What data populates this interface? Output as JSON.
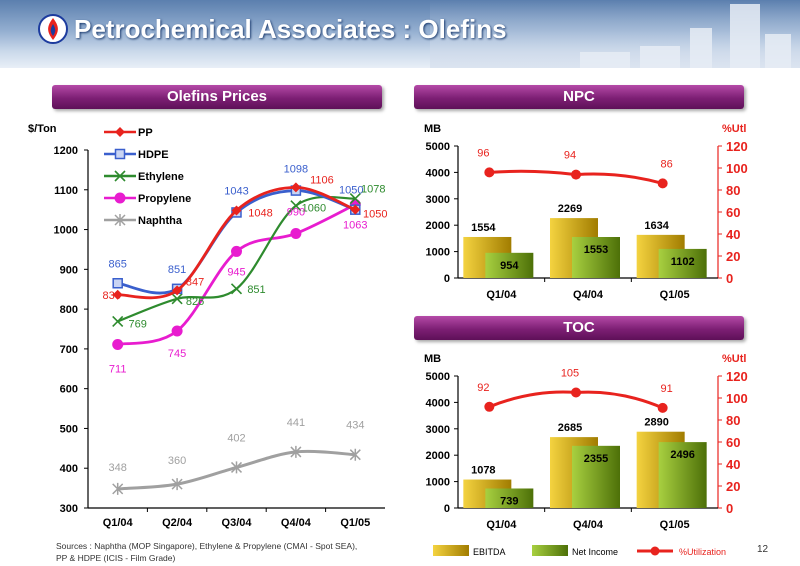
{
  "header": {
    "title": "Petrochemical Associates : Olefins"
  },
  "left": {
    "banner": "Olefins Prices",
    "chart_data": {
      "type": "line",
      "ylabel": "$/Ton",
      "ylim": [
        300,
        1200
      ],
      "yticks": [
        300,
        400,
        500,
        600,
        700,
        800,
        900,
        1000,
        1100,
        1200
      ],
      "categories": [
        "Q1/04",
        "Q2/04",
        "Q3/04",
        "Q4/04",
        "Q1/05"
      ],
      "legend": [
        "PP",
        "HDPE",
        "Ethylene",
        "Propylene",
        "Naphtha"
      ],
      "series": [
        {
          "name": "PP",
          "color": "#e8231e",
          "marker": "diamond",
          "values": [
            836,
            847,
            1048,
            1106,
            1050
          ]
        },
        {
          "name": "HDPE",
          "color": "#3a5fcd",
          "marker": "square",
          "values": [
            865,
            851,
            1043,
            1098,
            1050
          ]
        },
        {
          "name": "Ethylene",
          "color": "#2e8b2e",
          "marker": "x",
          "values": [
            769,
            826,
            851,
            1060,
            1078
          ]
        },
        {
          "name": "Propylene",
          "color": "#e81ccf",
          "marker": "circle",
          "values": [
            711,
            745,
            945,
            990,
            1063
          ]
        },
        {
          "name": "Naphtha",
          "color": "#a0a0a0",
          "marker": "star",
          "values": [
            348,
            360,
            402,
            441,
            434
          ]
        }
      ]
    }
  },
  "npc": {
    "banner": "NPC",
    "chart_data": {
      "type": "bar",
      "ylabel": "MB",
      "y2label": "%Utl",
      "ylim": [
        0,
        5000
      ],
      "yticks": [
        0,
        1000,
        2000,
        3000,
        4000,
        5000
      ],
      "y2lim": [
        0,
        120
      ],
      "y2ticks": [
        0,
        20,
        40,
        60,
        80,
        100,
        120
      ],
      "categories": [
        "Q1/04",
        "Q4/04",
        "Q1/05"
      ],
      "series": [
        {
          "name": "EBITDA",
          "values": [
            1554,
            2269,
            1634
          ]
        },
        {
          "name": "Net Income",
          "values": [
            954,
            1553,
            1102
          ]
        },
        {
          "name": "%Utilization",
          "values": [
            96,
            94,
            86
          ]
        }
      ]
    }
  },
  "toc": {
    "banner": "TOC",
    "chart_data": {
      "type": "bar",
      "ylabel": "MB",
      "y2label": "%Utl",
      "ylim": [
        0,
        5000
      ],
      "yticks": [
        0,
        1000,
        2000,
        3000,
        4000,
        5000
      ],
      "y2lim": [
        0,
        120
      ],
      "y2ticks": [
        0,
        20,
        40,
        60,
        80,
        100,
        120
      ],
      "categories": [
        "Q1/04",
        "Q4/04",
        "Q1/05"
      ],
      "series": [
        {
          "name": "EBITDA",
          "values": [
            1078,
            2685,
            2890
          ]
        },
        {
          "name": "Net Income",
          "values": [
            739,
            2355,
            2496
          ]
        },
        {
          "name": "%Utilization",
          "values": [
            92,
            105,
            91
          ]
        }
      ]
    }
  },
  "legend_bottom": {
    "ebitda": "EBITDA",
    "net_income": "Net Income",
    "utilization": "%Utilization"
  },
  "footer": {
    "line1": "Sources :  Naphtha (MOP Singapore), Ethylene &  Propylene (CMAI - Spot SEA),",
    "line2": "PP & HDPE (ICIS - Film Grade)",
    "page": "12"
  },
  "colors": {
    "ebitda": "#d4a800",
    "net_income": "#6f9a14",
    "utilization": "#e8231e",
    "banner": "#7d1f74"
  }
}
